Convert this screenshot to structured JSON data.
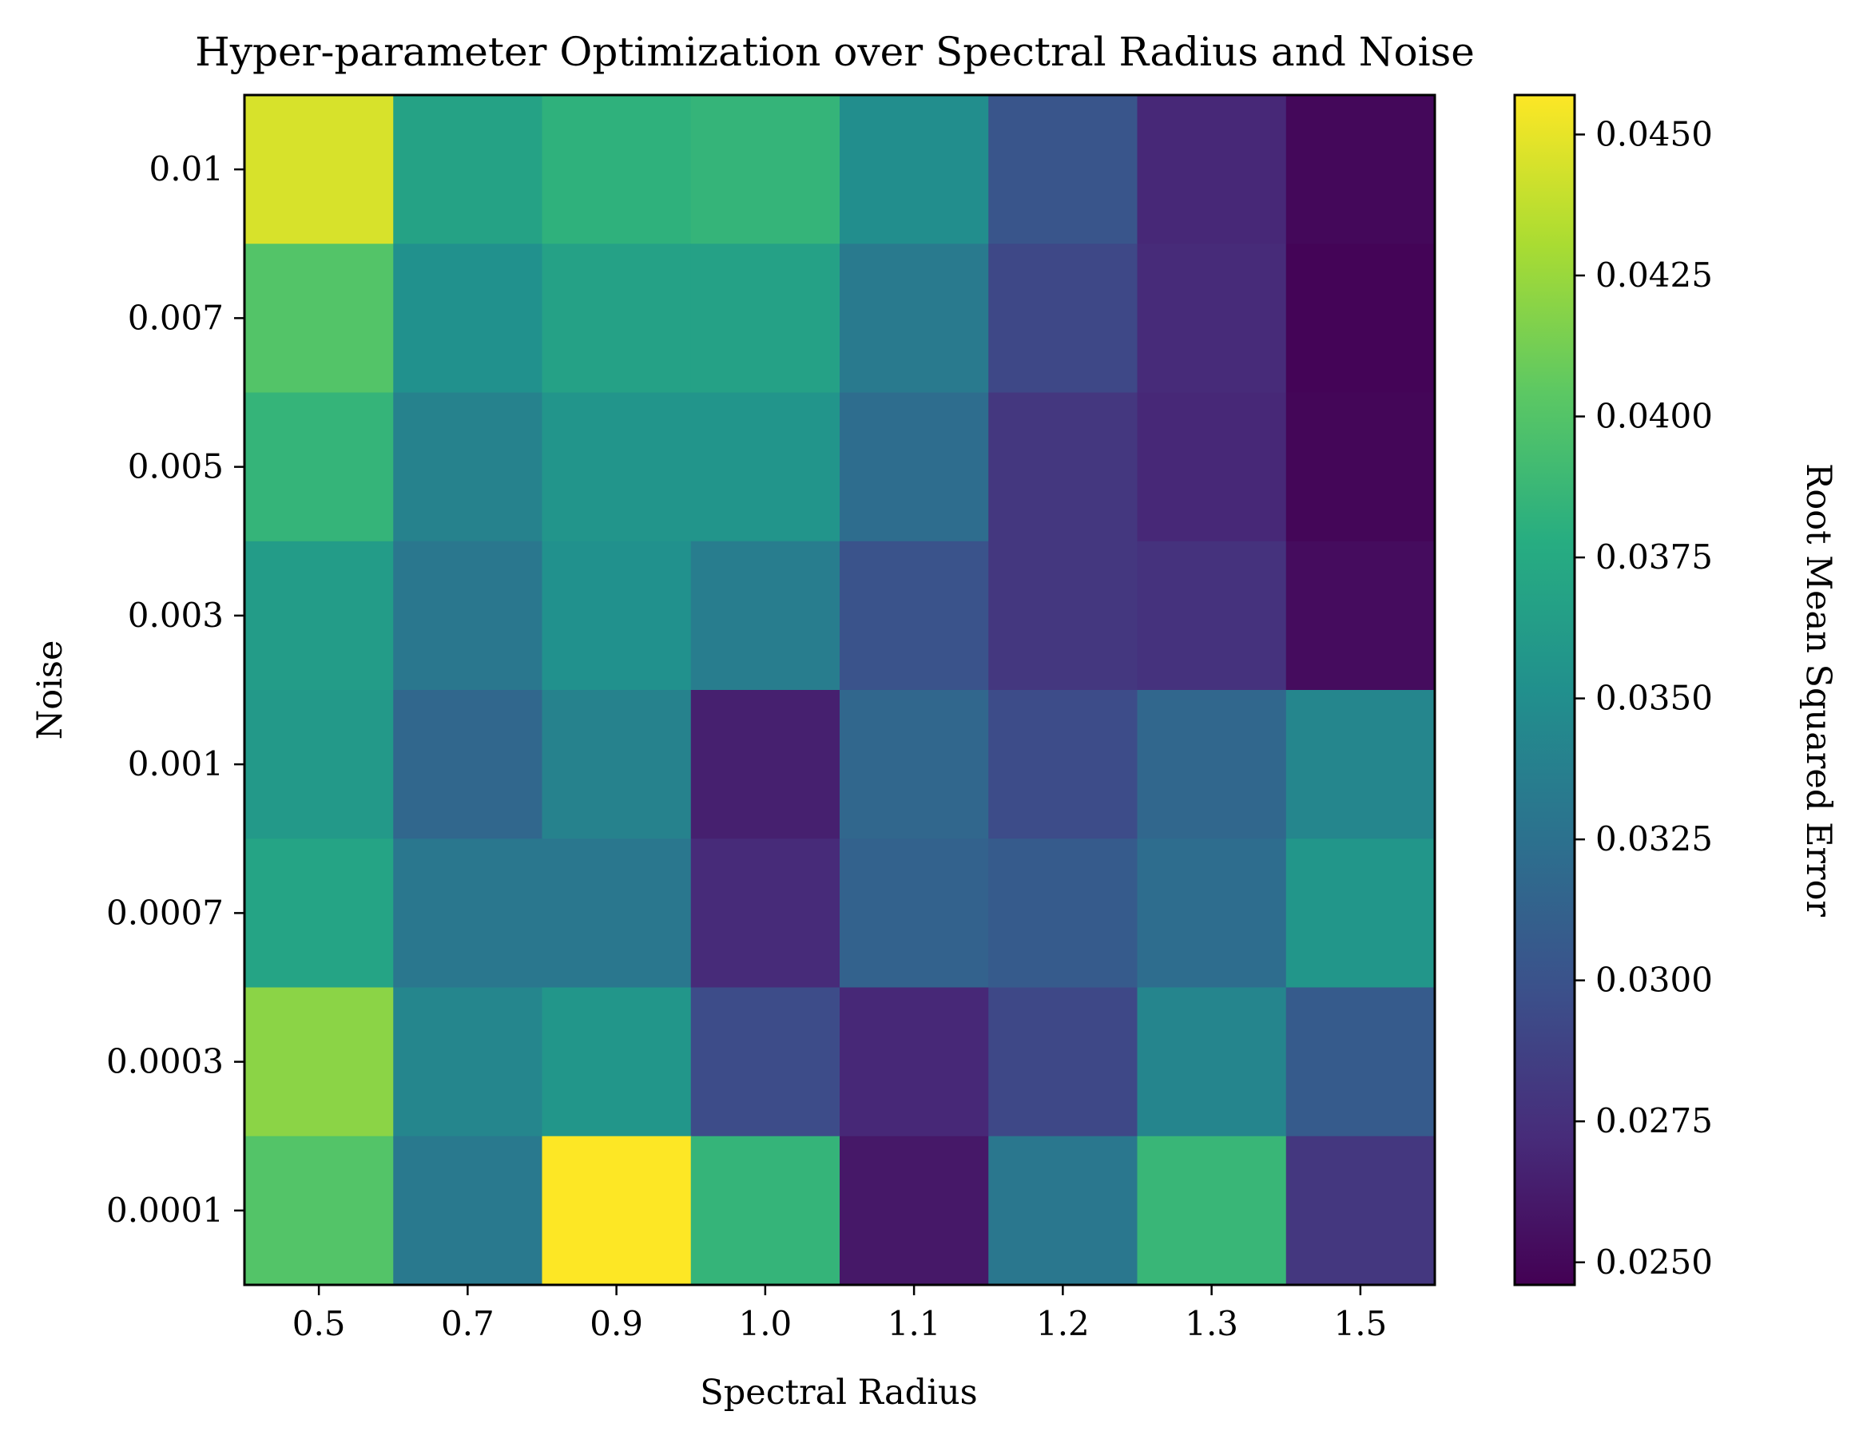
{
  "chart_data": {
    "type": "heatmap",
    "title": "Hyper-parameter Optimization over Spectral Radius and Noise",
    "xlabel": "Spectral Radius",
    "ylabel": "Noise",
    "colorbar_label": "Root Mean Squared Error",
    "colormap": "viridis",
    "x_categories": [
      "0.5",
      "0.7",
      "0.9",
      "1.0",
      "1.1",
      "1.2",
      "1.3",
      "1.5"
    ],
    "y_categories": [
      "0.01",
      "0.007",
      "0.005",
      "0.003",
      "0.001",
      "0.0007",
      "0.0003",
      "0.0001"
    ],
    "values": [
      [
        0.0445,
        0.0368,
        0.0382,
        0.0385,
        0.035,
        0.0302,
        0.027,
        0.025
      ],
      [
        0.04,
        0.0352,
        0.0367,
        0.0367,
        0.0333,
        0.0292,
        0.0272,
        0.0248
      ],
      [
        0.0385,
        0.034,
        0.0356,
        0.0356,
        0.0322,
        0.028,
        0.027,
        0.0249
      ],
      [
        0.0362,
        0.033,
        0.0352,
        0.0335,
        0.03,
        0.028,
        0.0277,
        0.0253
      ],
      [
        0.036,
        0.0317,
        0.034,
        0.0265,
        0.0317,
        0.0295,
        0.0317,
        0.0343
      ],
      [
        0.037,
        0.033,
        0.033,
        0.0272,
        0.0313,
        0.0307,
        0.0322,
        0.0357
      ],
      [
        0.042,
        0.0343,
        0.0357,
        0.0295,
        0.027,
        0.0292,
        0.0342,
        0.0307
      ],
      [
        0.04,
        0.0332,
        0.0457,
        0.0385,
        0.026,
        0.033,
        0.0387,
        0.028
      ]
    ],
    "vmin": 0.0246,
    "vmax": 0.0457,
    "colorbar_ticks": [
      "0.0250",
      "0.0275",
      "0.0300",
      "0.0325",
      "0.0350",
      "0.0375",
      "0.0400",
      "0.0425",
      "0.0450"
    ]
  }
}
